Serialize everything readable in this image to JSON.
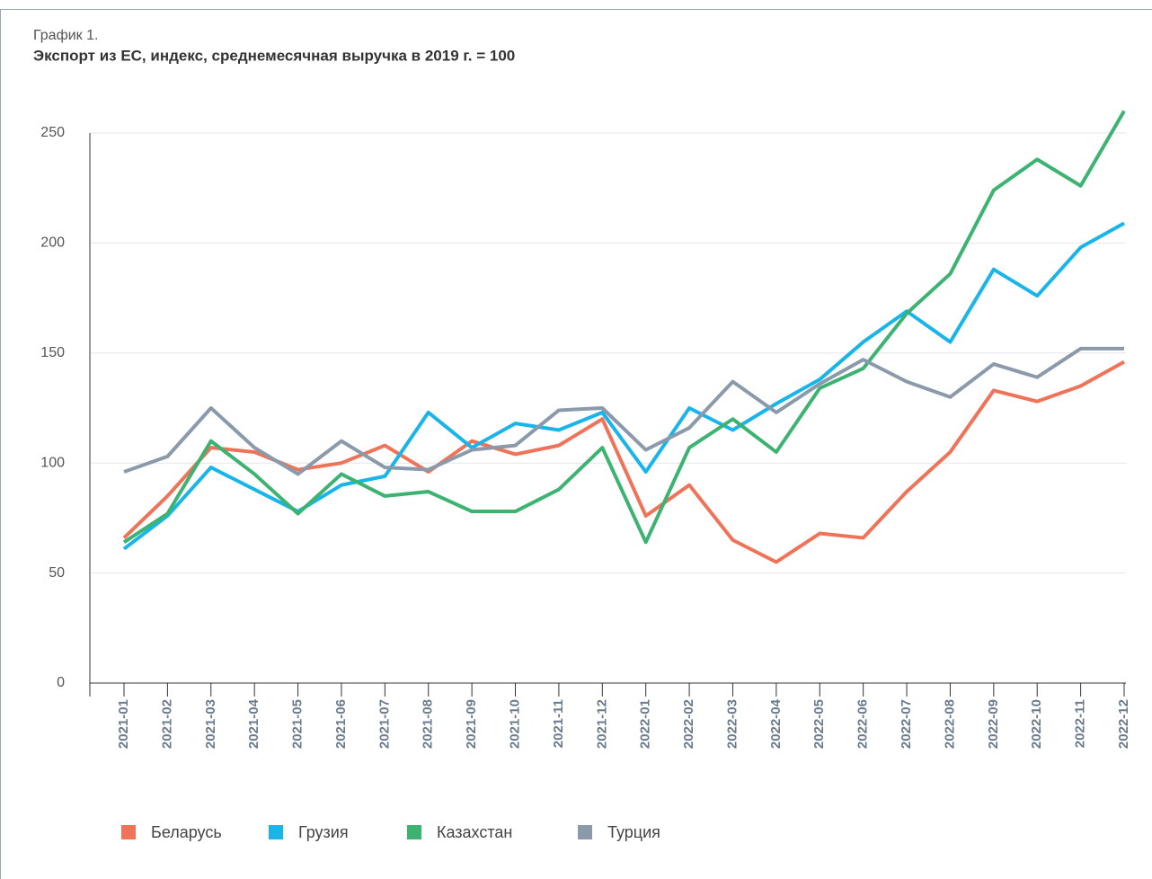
{
  "chart_data": {
    "type": "line",
    "label": "График 1.",
    "title": "Экспорт из ЕС, индекс, среднемесячная выручка в 2019 г. = 100",
    "categories": [
      "2021-01",
      "2021-02",
      "2021-03",
      "2021-04",
      "2021-05",
      "2021-06",
      "2021-07",
      "2021-08",
      "2021-09",
      "2021-10",
      "2021-11",
      "2021-12",
      "2022-01",
      "2022-02",
      "2022-03",
      "2022-04",
      "2022-05",
      "2022-06",
      "2022-07",
      "2022-08",
      "2022-09",
      "2022-10",
      "2022-11",
      "2022-12"
    ],
    "series": [
      {
        "name": "Беларусь",
        "color": "#ef7358",
        "values": [
          66,
          85,
          107,
          105,
          97,
          100,
          108,
          96,
          110,
          104,
          108,
          120,
          76,
          90,
          65,
          55,
          68,
          66,
          87,
          105,
          133,
          128,
          135,
          146
        ]
      },
      {
        "name": "Грузия",
        "color": "#19b5ea",
        "values": [
          61,
          76,
          98,
          88,
          78,
          90,
          94,
          123,
          107,
          118,
          115,
          123,
          96,
          125,
          115,
          127,
          138,
          155,
          169,
          155,
          188,
          176,
          198,
          209
        ]
      },
      {
        "name": "Казахстан",
        "color": "#3cb371",
        "values": [
          64,
          77,
          110,
          95,
          77,
          95,
          85,
          87,
          78,
          78,
          88,
          107,
          64,
          107,
          120,
          105,
          134,
          143,
          168,
          186,
          224,
          238,
          226,
          260
        ]
      },
      {
        "name": "Турция",
        "color": "#8a9aab",
        "values": [
          96,
          103,
          125,
          107,
          95,
          110,
          98,
          97,
          106,
          108,
          124,
          125,
          106,
          116,
          137,
          123,
          136,
          147,
          137,
          130,
          145,
          139,
          152,
          152
        ]
      }
    ],
    "ylim": [
      0,
      250
    ],
    "yticks": [
      0,
      50,
      100,
      150,
      200,
      250
    ],
    "grid": true
  }
}
